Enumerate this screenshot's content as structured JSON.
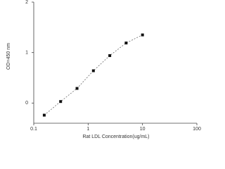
{
  "chart_data": {
    "type": "scatter",
    "x_label": "Rat LDL Concentration(ug/mL)",
    "y_label": "OD=450 nm",
    "x": [
      0.156,
      0.312,
      0.625,
      1.25,
      2.5,
      5,
      10
    ],
    "series": [
      {
        "color": "#111111",
        "values": [
          -0.24,
          0.03,
          0.29,
          0.64,
          0.94,
          1.19,
          1.35
        ]
      }
    ],
    "xlim": [
      0.1,
      100
    ],
    "xticks": [
      0.1,
      1,
      10,
      100
    ],
    "x_log": true,
    "ylim": [
      -0.4,
      2
    ],
    "yticks": [
      0,
      1,
      2
    ]
  }
}
